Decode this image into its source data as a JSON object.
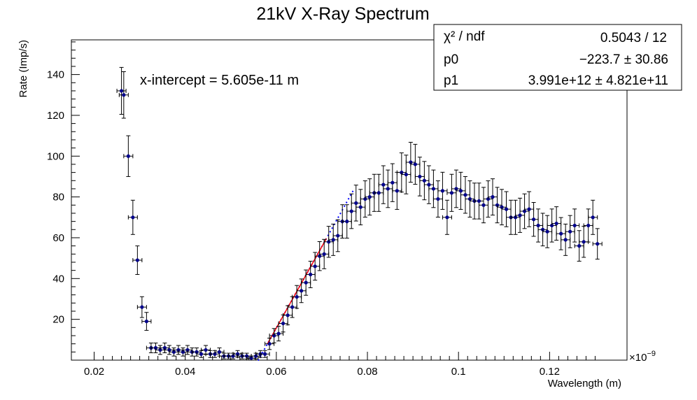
{
  "chart_data": {
    "type": "scatter",
    "title": "21kV X-Ray Spectrum",
    "xlabel": "Wavelength (m)",
    "ylabel": "Rate (Imp/s)",
    "x_exponent_label": "×10",
    "x_exponent_power": "−9",
    "xlim": [
      0.015,
      0.137
    ],
    "ylim": [
      0,
      157
    ],
    "x_ticks": [
      "0.02",
      "0.04",
      "0.06",
      "0.08",
      "0.1",
      "0.12"
    ],
    "x_tick_values": [
      0.02,
      0.04,
      0.06,
      0.08,
      0.1,
      0.12
    ],
    "y_ticks": [
      "20",
      "40",
      "60",
      "80",
      "100",
      "120",
      "140"
    ],
    "y_tick_values": [
      20,
      40,
      60,
      80,
      100,
      120,
      140
    ],
    "annotation": "x-intercept = 5.605e-11 m",
    "colors": {
      "points": "#00008b",
      "fit_line": "#ff0000",
      "extrap_line": "#0000ff",
      "axis": "#000000"
    },
    "stats_box": [
      {
        "label": "χ² / ndf",
        "value": "0.5043 / 12"
      },
      {
        "label": "p0",
        "value": "−223.7 ± 30.86"
      },
      {
        "label": "p1",
        "value": "3.991e+12 ± 4.821e+11"
      }
    ],
    "fit": {
      "p0": -223.7,
      "p1": 3.991,
      "fit_range": [
        0.058,
        0.071
      ],
      "extrap_range": [
        0.056,
        0.077
      ]
    },
    "x_error": 0.001,
    "series": [
      {
        "points": [
          [
            0.026,
            132,
            11.5
          ],
          [
            0.0265,
            130,
            11.4
          ],
          [
            0.0275,
            100,
            10.0
          ],
          [
            0.0285,
            70,
            8.4
          ],
          [
            0.0295,
            49,
            7.0
          ],
          [
            0.0305,
            26,
            5.1
          ],
          [
            0.0315,
            19,
            4.4
          ],
          [
            0.0325,
            6,
            2.4
          ],
          [
            0.0335,
            6,
            2.4
          ],
          [
            0.0345,
            5,
            2.2
          ],
          [
            0.0355,
            6,
            2.4
          ],
          [
            0.0365,
            5,
            2.2
          ],
          [
            0.0375,
            4,
            2.0
          ],
          [
            0.0385,
            5,
            2.2
          ],
          [
            0.0395,
            4,
            2.0
          ],
          [
            0.0405,
            5,
            2.2
          ],
          [
            0.0415,
            4,
            2.0
          ],
          [
            0.0425,
            4,
            2.0
          ],
          [
            0.0435,
            3,
            1.7
          ],
          [
            0.0445,
            5,
            2.2
          ],
          [
            0.0455,
            3,
            1.7
          ],
          [
            0.0465,
            3,
            1.7
          ],
          [
            0.0475,
            4,
            2.0
          ],
          [
            0.0485,
            2,
            1.4
          ],
          [
            0.0495,
            2,
            1.4
          ],
          [
            0.0505,
            2,
            1.4
          ],
          [
            0.0515,
            3,
            1.7
          ],
          [
            0.0525,
            2,
            1.4
          ],
          [
            0.0535,
            2,
            1.4
          ],
          [
            0.0545,
            1,
            1.0
          ],
          [
            0.0555,
            2,
            1.4
          ],
          [
            0.0565,
            3,
            1.7
          ],
          [
            0.0575,
            3,
            1.7
          ],
          [
            0.0585,
            8,
            2.8
          ],
          [
            0.0595,
            12,
            3.5
          ],
          [
            0.0605,
            13,
            3.6
          ],
          [
            0.0615,
            18,
            4.2
          ],
          [
            0.0625,
            22,
            4.7
          ],
          [
            0.0635,
            26,
            5.1
          ],
          [
            0.0645,
            31,
            5.6
          ],
          [
            0.0655,
            34,
            5.8
          ],
          [
            0.0665,
            38,
            6.2
          ],
          [
            0.0675,
            42,
            6.5
          ],
          [
            0.0685,
            46,
            6.8
          ],
          [
            0.0695,
            51,
            7.1
          ],
          [
            0.0705,
            52,
            7.2
          ],
          [
            0.0715,
            58,
            7.6
          ],
          [
            0.0725,
            59,
            7.7
          ],
          [
            0.0735,
            61,
            7.8
          ],
          [
            0.0745,
            68,
            8.2
          ],
          [
            0.0755,
            68,
            8.2
          ],
          [
            0.0765,
            73,
            8.5
          ],
          [
            0.0775,
            77,
            8.8
          ],
          [
            0.0785,
            75,
            8.7
          ],
          [
            0.0795,
            79,
            8.9
          ],
          [
            0.0805,
            80,
            8.9
          ],
          [
            0.0815,
            82,
            9.1
          ],
          [
            0.0825,
            82,
            9.1
          ],
          [
            0.0835,
            86,
            9.3
          ],
          [
            0.0845,
            84,
            9.2
          ],
          [
            0.0855,
            87,
            9.3
          ],
          [
            0.0865,
            83,
            9.1
          ],
          [
            0.0875,
            92,
            9.6
          ],
          [
            0.0885,
            91,
            9.5
          ],
          [
            0.0895,
            97,
            9.8
          ],
          [
            0.0905,
            96,
            9.8
          ],
          [
            0.0915,
            90,
            9.5
          ],
          [
            0.0925,
            88,
            9.4
          ],
          [
            0.0935,
            86,
            9.3
          ],
          [
            0.0945,
            84,
            9.2
          ],
          [
            0.0955,
            79,
            8.9
          ],
          [
            0.0965,
            83,
            9.1
          ],
          [
            0.0975,
            70,
            8.4
          ],
          [
            0.0985,
            82,
            9.1
          ],
          [
            0.0995,
            84,
            9.2
          ],
          [
            0.1005,
            83,
            9.1
          ],
          [
            0.1015,
            81,
            9.0
          ],
          [
            0.1025,
            79,
            8.9
          ],
          [
            0.1035,
            78,
            8.8
          ],
          [
            0.1045,
            78,
            8.8
          ],
          [
            0.1055,
            76,
            8.7
          ],
          [
            0.1065,
            79,
            8.9
          ],
          [
            0.1075,
            80,
            8.9
          ],
          [
            0.1085,
            76,
            8.7
          ],
          [
            0.1095,
            75,
            8.7
          ],
          [
            0.1105,
            74,
            8.6
          ],
          [
            0.1115,
            70,
            8.4
          ],
          [
            0.1125,
            70,
            8.4
          ],
          [
            0.1135,
            71,
            8.4
          ],
          [
            0.1145,
            73,
            8.5
          ],
          [
            0.1155,
            74,
            8.6
          ],
          [
            0.1165,
            69,
            8.3
          ],
          [
            0.1175,
            66,
            8.1
          ],
          [
            0.1185,
            64,
            8.0
          ],
          [
            0.1195,
            63,
            7.9
          ],
          [
            0.1205,
            66,
            8.1
          ],
          [
            0.1215,
            67,
            8.2
          ],
          [
            0.1225,
            62,
            7.9
          ],
          [
            0.1235,
            59,
            7.7
          ],
          [
            0.1245,
            63,
            7.9
          ],
          [
            0.1255,
            66,
            8.1
          ],
          [
            0.1265,
            56,
            7.5
          ],
          [
            0.1275,
            58,
            7.6
          ],
          [
            0.1285,
            66,
            8.1
          ],
          [
            0.1295,
            70,
            8.4
          ],
          [
            0.1305,
            57,
            7.5
          ]
        ]
      }
    ]
  }
}
